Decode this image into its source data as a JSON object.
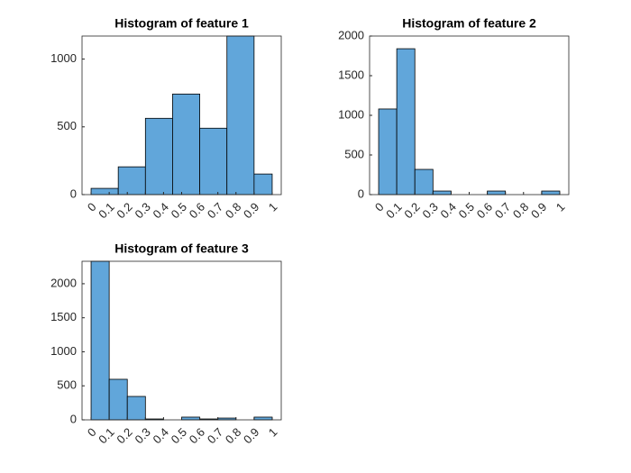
{
  "chart_data": [
    {
      "type": "histogram",
      "title": "Histogram of feature 1",
      "bins": [
        0,
        0.15,
        0.3,
        0.45,
        0.6,
        0.75,
        0.9,
        1
      ],
      "counts": [
        46,
        205,
        563,
        742,
        490,
        1170,
        152
      ],
      "color": "#61a6da",
      "xlim": [
        -0.05,
        1.05
      ],
      "xticks": [
        0,
        0.1,
        0.2,
        0.3,
        0.4,
        0.5,
        0.6,
        0.7,
        0.8,
        0.9,
        1
      ],
      "ylim": [
        0,
        1170
      ],
      "yticks": [
        0,
        500,
        1000
      ]
    },
    {
      "type": "histogram",
      "title": "Histogram of feature 2",
      "bins": [
        0,
        0.1,
        0.2,
        0.3,
        0.4,
        0.5,
        0.6,
        0.7,
        0.8,
        0.9,
        1
      ],
      "counts": [
        1080,
        1840,
        318,
        45,
        0,
        0,
        45,
        0,
        0,
        45
      ],
      "color": "#61a6da",
      "xlim": [
        -0.05,
        1.05
      ],
      "xticks": [
        0,
        0.1,
        0.2,
        0.3,
        0.4,
        0.5,
        0.6,
        0.7,
        0.8,
        0.9,
        1
      ],
      "ylim": [
        0,
        2000
      ],
      "yticks": [
        0,
        500,
        1000,
        1500,
        2000
      ]
    },
    {
      "type": "histogram",
      "title": "Histogram of feature 3",
      "bins": [
        0,
        0.1,
        0.2,
        0.3,
        0.4,
        0.5,
        0.6,
        0.7,
        0.8,
        0.9,
        1
      ],
      "counts": [
        2330,
        596,
        344,
        13,
        0,
        40,
        13,
        26,
        0,
        40
      ],
      "color": "#61a6da",
      "xlim": [
        -0.05,
        1.05
      ],
      "xticks": [
        0,
        0.1,
        0.2,
        0.3,
        0.4,
        0.5,
        0.6,
        0.7,
        0.8,
        0.9,
        1
      ],
      "ylim": [
        0,
        2330
      ],
      "yticks": [
        0,
        500,
        1000,
        1500,
        2000
      ]
    }
  ]
}
